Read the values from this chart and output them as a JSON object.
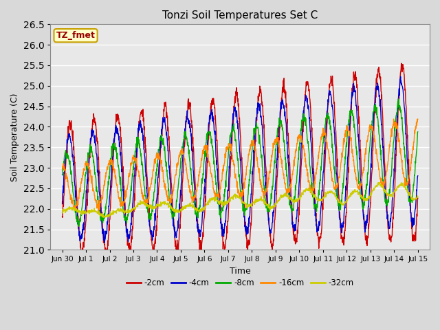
{
  "title": "Tonzi Soil Temperatures Set C",
  "xlabel": "Time",
  "ylabel": "Soil Temperature (C)",
  "ylim": [
    21.0,
    26.5
  ],
  "background_color": "#d9d9d9",
  "plot_bg_color": "#e8e8e8",
  "grid_color": "#ffffff",
  "annotation_text": "TZ_fmet",
  "annotation_bg": "#ffffcc",
  "annotation_border": "#c8a000",
  "annotation_text_color": "#990000",
  "legend_entries": [
    "-2cm",
    "-4cm",
    "-8cm",
    "-16cm",
    "-32cm"
  ],
  "legend_colors": [
    "#cc0000",
    "#0000cc",
    "#00aa00",
    "#ff8800",
    "#cccc00"
  ],
  "tick_labels": [
    "Jun 30",
    "Jul 1",
    "Jul 2",
    "Jul 3",
    "Jul 4",
    "Jul 5",
    "Jul 6",
    "Jul 7",
    "Jul 8",
    "Jul 9",
    "Jul 10",
    "Jul 11",
    "Jul 12",
    "Jul 13",
    "Jul 14",
    "Jul 15"
  ],
  "tick_positions": [
    0,
    1,
    2,
    3,
    4,
    5,
    6,
    7,
    8,
    9,
    10,
    11,
    12,
    13,
    14,
    15
  ],
  "figsize": [
    6.4,
    4.8
  ],
  "dpi": 100
}
